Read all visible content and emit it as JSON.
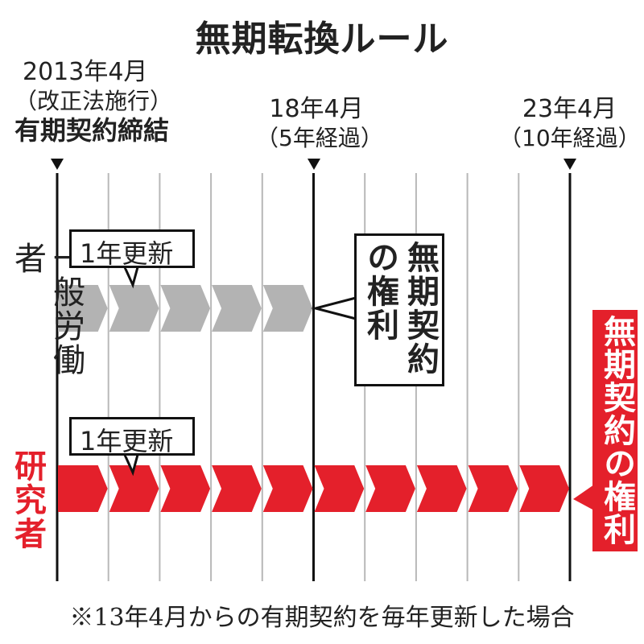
{
  "title": "無期転換ルール",
  "markers": [
    {
      "date": "2013年4月",
      "note": "（改正法施行）",
      "event": "有期契約締結"
    },
    {
      "date": "18年4月",
      "note": "（5年経過）"
    },
    {
      "date": "23年4月",
      "note": "（10年経過）"
    }
  ],
  "rows": [
    {
      "label": "一般労働者",
      "renewal_label": "1年更新",
      "color": "#b3b3b3",
      "years": 5,
      "result": "無期契約の権利"
    },
    {
      "label": "研究者",
      "label_color": "#e4202b",
      "renewal_label": "1年更新",
      "color": "#e4202b",
      "years": 10,
      "result": "無期契約の権利"
    }
  ],
  "footnote": "※13年4月からの有期契約を毎年更新した場合",
  "colors": {
    "gray": "#b3b3b3",
    "red": "#e4202b",
    "line": "#111111",
    "grid": "#b8b8b8"
  }
}
